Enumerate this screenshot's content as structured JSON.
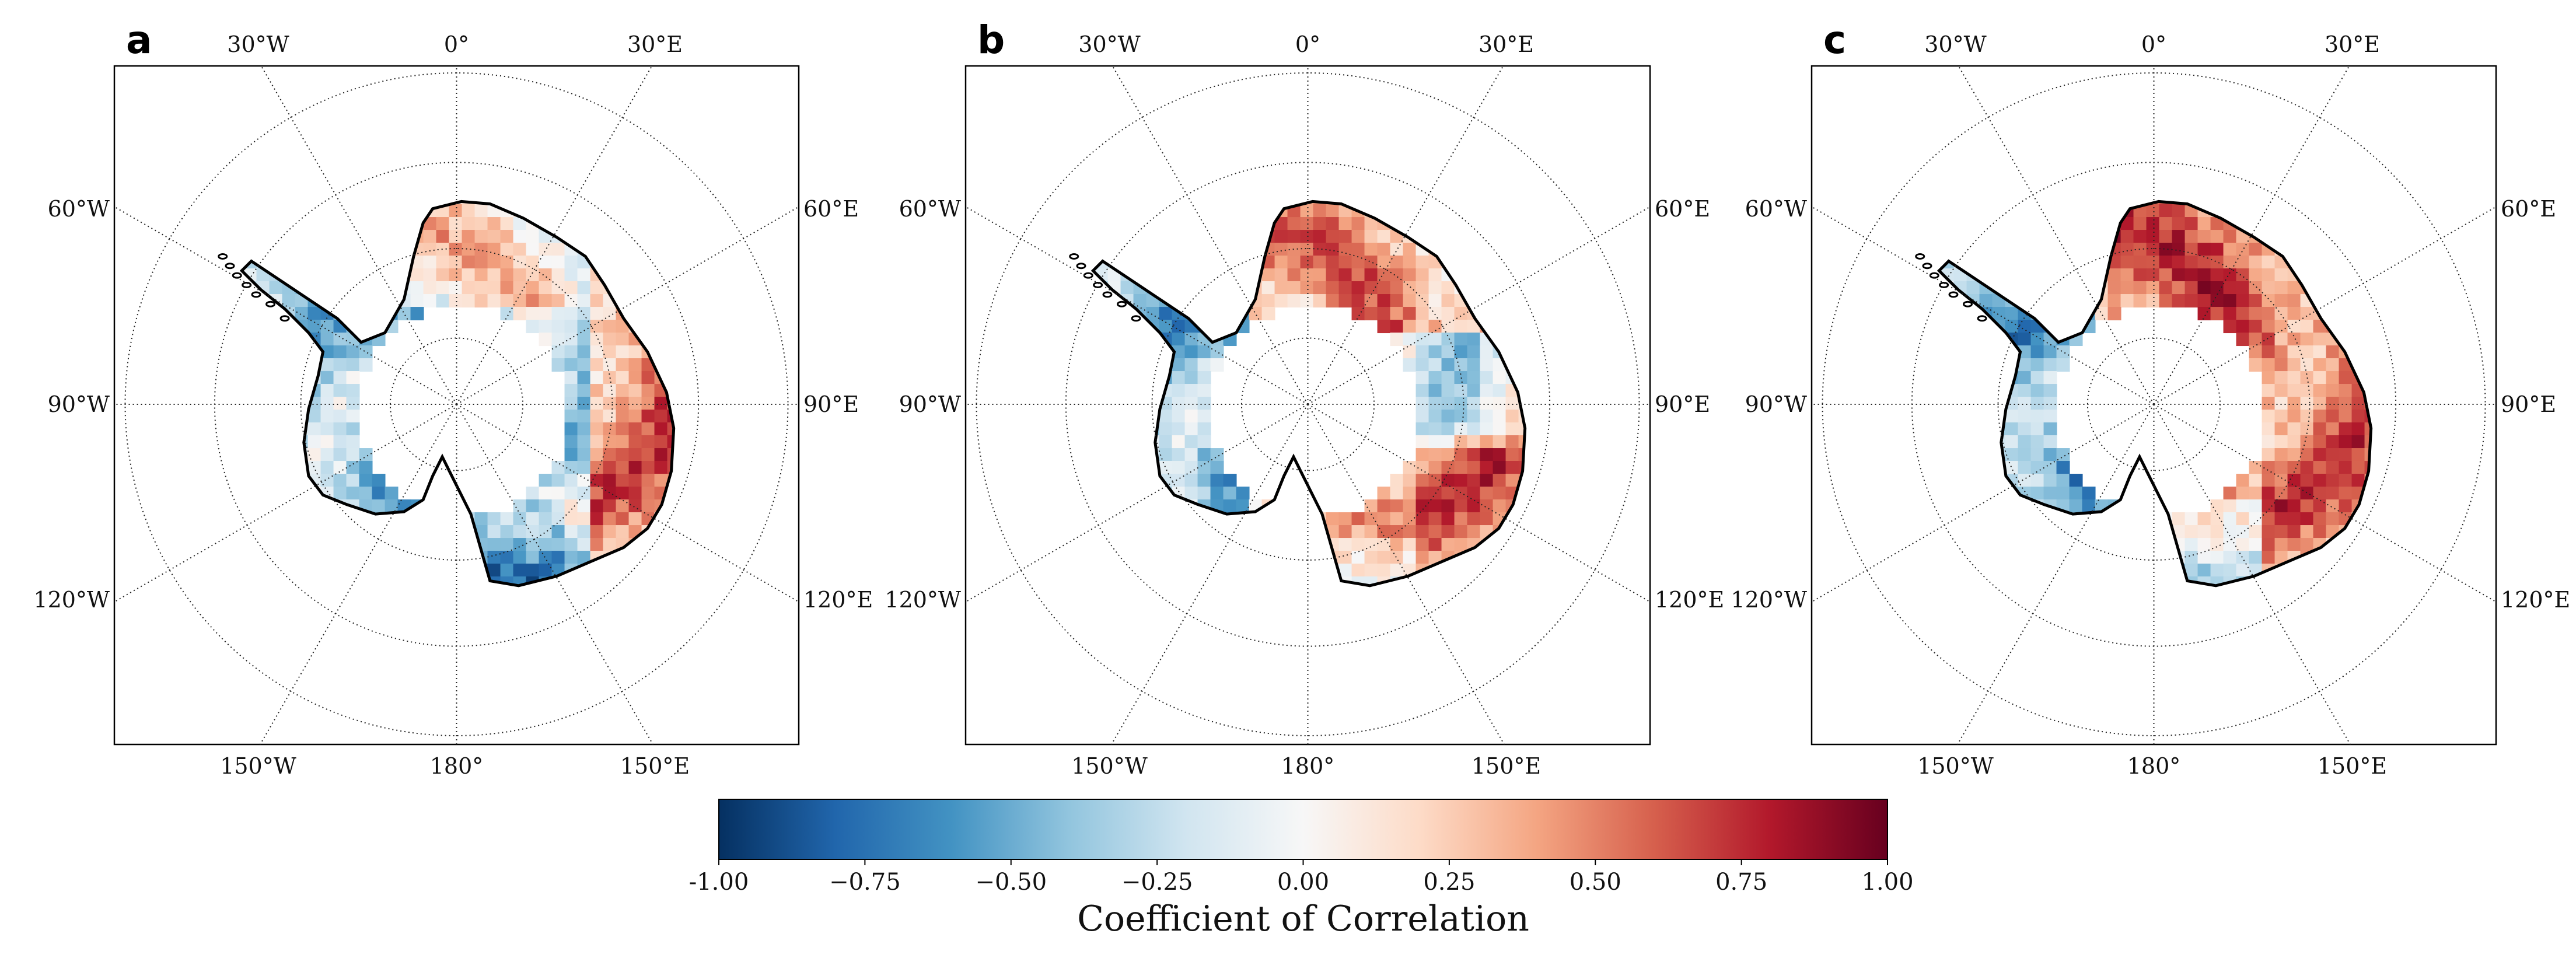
{
  "figure": {
    "panels": [
      {
        "letter": "a",
        "pattern_id": "a"
      },
      {
        "letter": "b",
        "pattern_id": "b"
      },
      {
        "letter": "c",
        "pattern_id": "c"
      }
    ],
    "graticule": {
      "top_labels": [
        "30°W",
        "0°",
        "30°E"
      ],
      "left_labels": [
        "60°W",
        "90°W",
        "120°W"
      ],
      "right_labels": [
        "60°E",
        "90°E",
        "120°E"
      ],
      "bottom_labels": [
        "150°W",
        "180°",
        "150°E"
      ]
    },
    "colorbar": {
      "label": "Coefficient of Correlation",
      "ticks": [
        "-1.00",
        "−0.75",
        "−0.50",
        "−0.25",
        "0.00",
        "0.25",
        "0.50",
        "0.75",
        "1.00"
      ],
      "min": -1.0,
      "max": 1.0,
      "colormap": "RdBu_r",
      "colors": [
        "#053061",
        "#2166ac",
        "#4393c3",
        "#92c5de",
        "#d1e5f0",
        "#f7f7f7",
        "#fddbc7",
        "#f4a582",
        "#d6604d",
        "#b2182b",
        "#67001f"
      ]
    }
  }
}
